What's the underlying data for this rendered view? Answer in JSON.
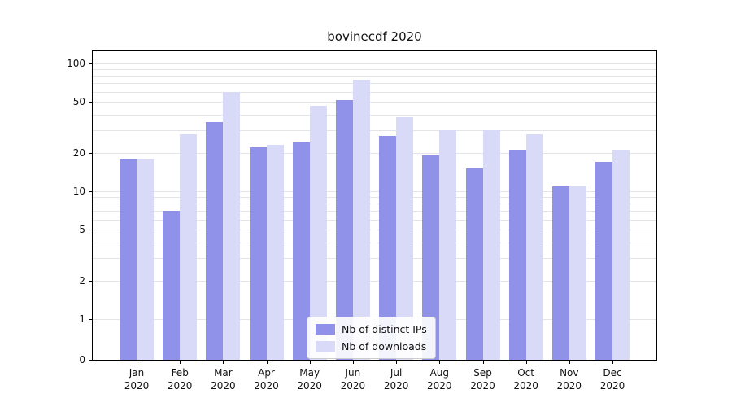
{
  "title": "bovinecdf 2020",
  "legend": {
    "items": [
      {
        "label": "Nb of distinct IPs",
        "color": "#8f92e8"
      },
      {
        "label": "Nb of downloads",
        "color": "#d9d9f8"
      }
    ]
  },
  "chart_data": {
    "type": "bar",
    "title": "bovinecdf 2020",
    "categories": [
      "Jan 2020",
      "Feb 2020",
      "Mar 2020",
      "Apr 2020",
      "May 2020",
      "Jun 2020",
      "Jul 2020",
      "Aug 2020",
      "Sep 2020",
      "Oct 2020",
      "Nov 2020",
      "Dec 2020"
    ],
    "series": [
      {
        "name": "Nb of distinct IPs",
        "color": "#8f92e8",
        "values": [
          18,
          7,
          35,
          22,
          24,
          52,
          27,
          19,
          15,
          21,
          11,
          17
        ]
      },
      {
        "name": "Nb of downloads",
        "color": "#d9d9f8",
        "values": [
          18,
          28,
          60,
          23,
          47,
          75,
          38,
          30,
          30,
          28,
          11,
          21
        ]
      }
    ],
    "xlabel": "",
    "ylabel": "",
    "yscale": "symlog",
    "yticks": [
      0,
      1,
      2,
      5,
      10,
      20,
      50,
      100
    ],
    "grid_values": [
      1,
      2,
      3,
      4,
      5,
      6,
      7,
      8,
      9,
      10,
      20,
      30,
      40,
      50,
      60,
      70,
      80,
      90,
      100
    ],
    "ylim": [
      0,
      120
    ],
    "grid": true,
    "legend_position": "lower center",
    "gridline_color": "#e4e4e8"
  }
}
